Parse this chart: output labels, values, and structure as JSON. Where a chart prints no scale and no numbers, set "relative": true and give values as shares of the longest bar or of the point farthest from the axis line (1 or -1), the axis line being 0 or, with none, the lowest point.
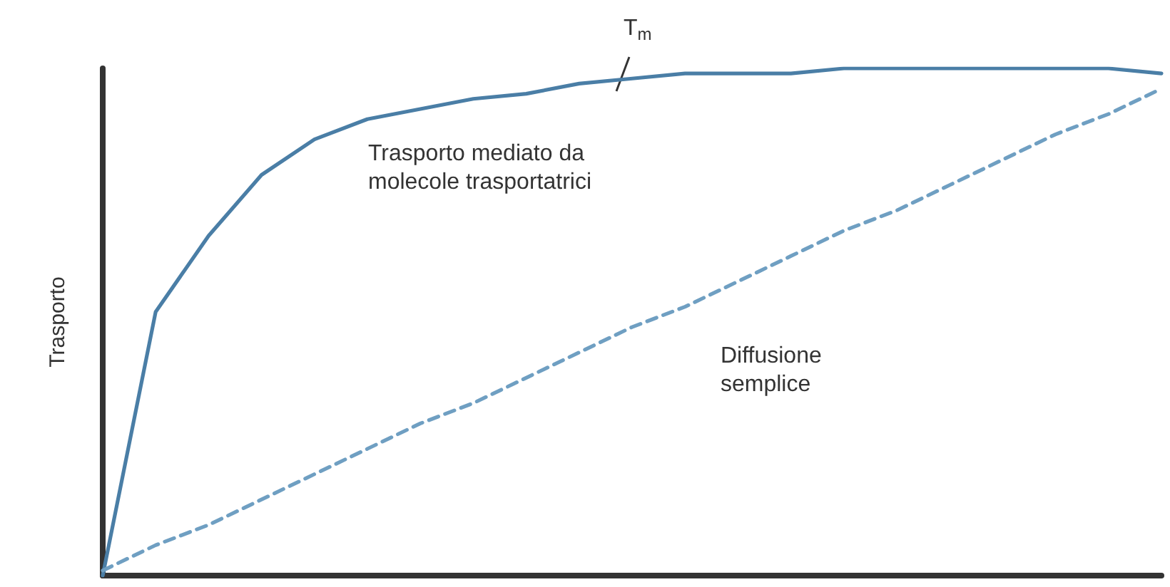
{
  "chart_data": {
    "type": "line",
    "relative": true,
    "ylabel": "Trasporto",
    "grid": false,
    "marker": "none",
    "categories": [
      null,
      null,
      null,
      null,
      null,
      null,
      null,
      null,
      null,
      null,
      null,
      null,
      null,
      null,
      null,
      null,
      null,
      null,
      null,
      null,
      null
    ],
    "series": [
      {
        "color": "#4a7ea6",
        "line_style": "solid",
        "values": [
          0,
          0.52,
          0.67,
          0.79,
          0.86,
          0.9,
          0.92,
          0.94,
          0.95,
          0.97,
          0.98,
          0.99,
          0.99,
          0.99,
          1,
          1,
          1,
          1,
          1,
          1,
          0.99
        ]
      },
      {
        "color": "#6f9fc2",
        "line_style": "dashed",
        "values": [
          0.01,
          0.06,
          0.1,
          0.15,
          0.2,
          0.25,
          0.3,
          0.34,
          0.39,
          0.44,
          0.49,
          0.53,
          0.58,
          0.63,
          0.68,
          0.72,
          0.77,
          0.82,
          0.87,
          0.91,
          0.96
        ]
      }
    ],
    "annotations": [
      "T$_{m}$",
      "Trasporto mediato da\nmolecole trasportatrici",
      "Diffusione\nsemplice"
    ]
  }
}
